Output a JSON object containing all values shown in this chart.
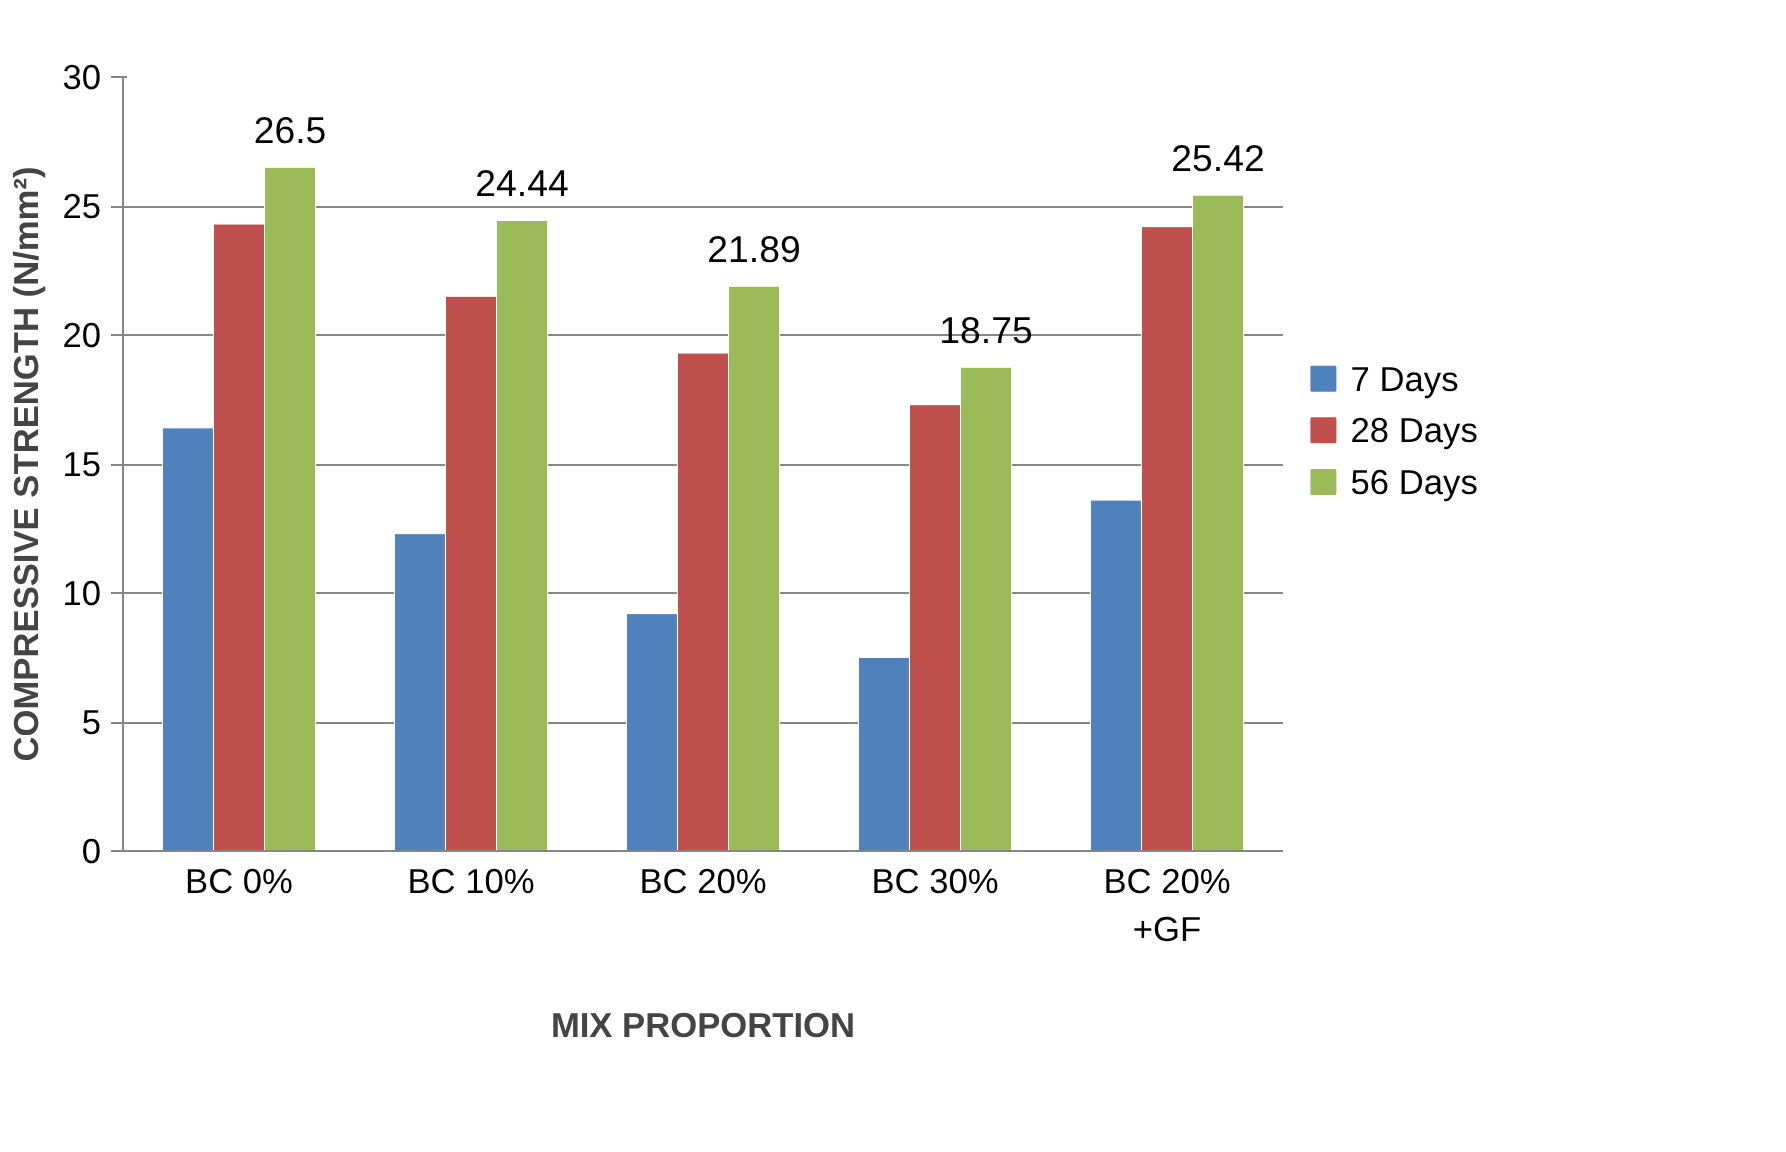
{
  "chart_data": {
    "type": "bar",
    "xlabel": "MIX PROPORTION",
    "ylabel": "COMPRESSIVE STRENGTH (N/mm²)",
    "categories": [
      "BC 0%",
      "BC 10%",
      "BC 20%",
      "BC 30%",
      "BC 20%\n+GF"
    ],
    "series": [
      {
        "name": "7 Days",
        "color": "#4f81bd",
        "values": [
          16.4,
          12.3,
          9.2,
          7.5,
          13.6
        ]
      },
      {
        "name": "28 Days",
        "color": "#c0504d",
        "values": [
          24.3,
          21.5,
          19.3,
          17.3,
          24.2
        ]
      },
      {
        "name": "56 Days",
        "color": "#9bbb59",
        "values": [
          26.5,
          24.44,
          21.89,
          18.75,
          25.42
        ],
        "value_labels": [
          "26.5",
          "24.44",
          "21.89",
          "18.75",
          "25.42"
        ]
      }
    ],
    "ylim": [
      0,
      30
    ],
    "yticks": [
      0,
      5,
      10,
      15,
      20,
      25,
      30
    ],
    "grid": "y",
    "legend": "right"
  }
}
